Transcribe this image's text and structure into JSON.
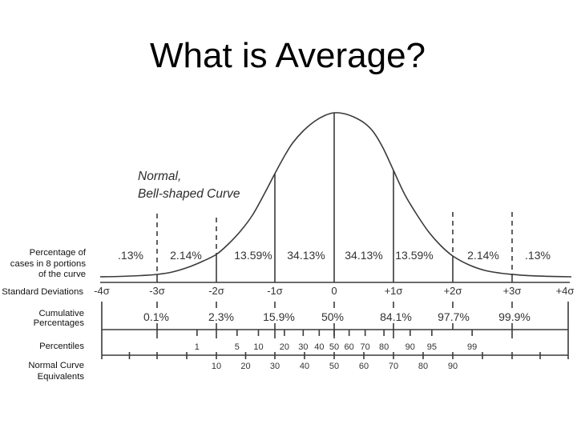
{
  "title": "What is Average?",
  "annotation": {
    "line1": "Normal,",
    "line2": "Bell-shaped Curve"
  },
  "row_labels": {
    "portions": [
      "Percentage of",
      "cases in 8 portions",
      "of the curve"
    ],
    "std_dev": "Standard Deviations",
    "cumulative": [
      "Cumulative",
      "Percentages"
    ],
    "percentiles": "Percentiles",
    "nce": [
      "Normal Curve",
      "Equivalents"
    ]
  },
  "colors": {
    "line": "#3a3a3a",
    "text": "#333333",
    "title": "#000000",
    "background": "#ffffff"
  },
  "chart_data": {
    "type": "line",
    "title": "What is Average?",
    "subtitle": "",
    "annotation": "Normal, Bell-shaped Curve",
    "xlabel": "Standard Deviations",
    "ylabel": "",
    "xlim": [
      -4,
      4
    ],
    "grid": false,
    "legend": null,
    "distribution": {
      "name": "normal",
      "mean": 0,
      "sd": 1
    },
    "std_dev_ticks": [
      {
        "z": -4,
        "label": "-4σ"
      },
      {
        "z": -3,
        "label": "-3σ"
      },
      {
        "z": -2,
        "label": "-2σ"
      },
      {
        "z": -1,
        "label": "-1σ"
      },
      {
        "z": 0,
        "label": "0"
      },
      {
        "z": 1,
        "label": "+1σ"
      },
      {
        "z": 2,
        "label": "+2σ"
      },
      {
        "z": 3,
        "label": "+3σ"
      },
      {
        "z": 4,
        "label": "+4σ"
      }
    ],
    "portions": [
      {
        "from": -4,
        "to": -3,
        "label": ".13%",
        "value": 0.13
      },
      {
        "from": -3,
        "to": -2,
        "label": "2.14%",
        "value": 2.14
      },
      {
        "from": -2,
        "to": -1,
        "label": "13.59%",
        "value": 13.59
      },
      {
        "from": -1,
        "to": 0,
        "label": "34.13%",
        "value": 34.13
      },
      {
        "from": 0,
        "to": 1,
        "label": "34.13%",
        "value": 34.13
      },
      {
        "from": 1,
        "to": 2,
        "label": "13.59%",
        "value": 13.59
      },
      {
        "from": 2,
        "to": 3,
        "label": "2.14%",
        "value": 2.14
      },
      {
        "from": 3,
        "to": 4,
        "label": ".13%",
        "value": 0.13
      }
    ],
    "cumulative_percentages": [
      {
        "z": -3,
        "label": "0.1%",
        "value": 0.1
      },
      {
        "z": -2,
        "label": "2.3%",
        "value": 2.3
      },
      {
        "z": -1,
        "label": "15.9%",
        "value": 15.9
      },
      {
        "z": 0,
        "label": "50%",
        "value": 50
      },
      {
        "z": 1,
        "label": "84.1%",
        "value": 84.1
      },
      {
        "z": 2,
        "label": "97.7%",
        "value": 97.7
      },
      {
        "z": 3,
        "label": "99.9%",
        "value": 99.9
      }
    ],
    "percentiles": [
      {
        "p": 1,
        "label": "1"
      },
      {
        "p": 5,
        "label": "5"
      },
      {
        "p": 10,
        "label": "10"
      },
      {
        "p": 20,
        "label": "20"
      },
      {
        "p": 30,
        "label": "30"
      },
      {
        "p": 40,
        "label": "40"
      },
      {
        "p": 50,
        "label": "50"
      },
      {
        "p": 60,
        "label": "60"
      },
      {
        "p": 70,
        "label": "70"
      },
      {
        "p": 80,
        "label": "80"
      },
      {
        "p": 90,
        "label": "90"
      },
      {
        "p": 95,
        "label": "95"
      },
      {
        "p": 99,
        "label": "99"
      }
    ],
    "normal_curve_equivalents": [
      {
        "nce": 10,
        "label": "10"
      },
      {
        "nce": 20,
        "label": "20"
      },
      {
        "nce": 30,
        "label": "30"
      },
      {
        "nce": 40,
        "label": "40"
      },
      {
        "nce": 50,
        "label": "50"
      },
      {
        "nce": 60,
        "label": "60"
      },
      {
        "nce": 70,
        "label": "70"
      },
      {
        "nce": 80,
        "label": "80"
      },
      {
        "nce": 90,
        "label": "90"
      }
    ]
  }
}
